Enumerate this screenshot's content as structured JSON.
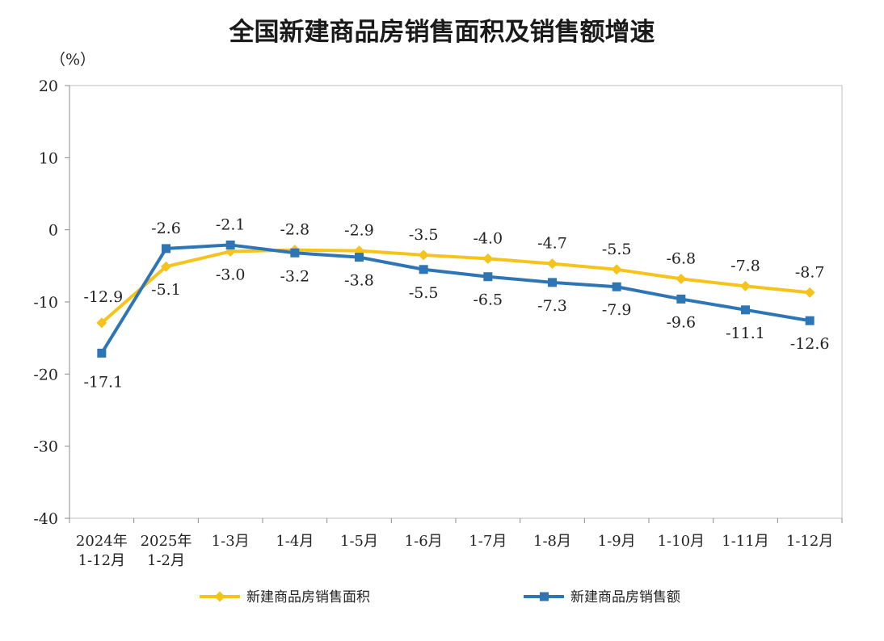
{
  "chart_data": {
    "type": "line",
    "title": "全国新建商品房销售面积及销售额增速",
    "ylabel": "（%）",
    "xlabel": "",
    "ylim": [
      -40,
      20
    ],
    "yticks": [
      20,
      10,
      0,
      -10,
      -20,
      -30,
      -40
    ],
    "grid": false,
    "legend_position": "bottom",
    "categories": [
      [
        "2024年",
        "1-12月"
      ],
      [
        "2025年",
        "1-2月"
      ],
      [
        "1-3月"
      ],
      [
        "1-4月"
      ],
      [
        "1-5月"
      ],
      [
        "1-6月"
      ],
      [
        "1-7月"
      ],
      [
        "1-8月"
      ],
      [
        "1-9月"
      ],
      [
        "1-10月"
      ],
      [
        "1-11月"
      ],
      [
        "1-12月"
      ]
    ],
    "series": [
      {
        "name": "新建商品房销售面积",
        "color": "#F5C31A",
        "marker": "diamond",
        "values": [
          -12.9,
          -5.1,
          -3.0,
          -2.8,
          -2.9,
          -3.5,
          -4.0,
          -4.7,
          -5.5,
          -6.8,
          -7.8,
          -8.7
        ],
        "labels": [
          "-12.9",
          "-5.1",
          "-3.0",
          "-2.8",
          "-2.9",
          "-3.5",
          "-4.0",
          "-4.7",
          "-5.5",
          "-6.8",
          "-7.8",
          "-8.7"
        ]
      },
      {
        "name": "新建商品房销售额",
        "color": "#2E75B6",
        "marker": "square",
        "values": [
          -17.1,
          -2.6,
          -2.1,
          -3.2,
          -3.8,
          -5.5,
          -6.5,
          -7.3,
          -7.9,
          -9.6,
          -11.1,
          -12.6
        ],
        "labels": [
          "-17.1",
          "-2.6",
          "-2.1",
          "-3.2",
          "-3.8",
          "-5.5",
          "-6.5",
          "-7.3",
          "-7.9",
          "-9.6",
          "-11.1",
          "-12.6"
        ]
      }
    ]
  }
}
